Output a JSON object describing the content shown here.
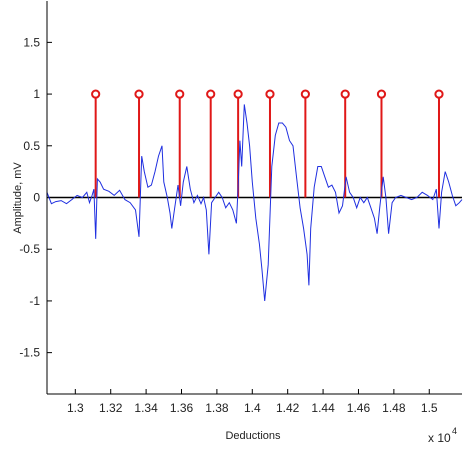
{
  "chart_data": {
    "type": "line",
    "title": "",
    "xlabel": "Deductions",
    "ylabel": "Amplitude, mV",
    "x_multiplier_label": "x 10",
    "x_multiplier_exponent": "4",
    "xlim": [
      1.284,
      1.5185
    ],
    "ylim": [
      -1.9,
      1.9
    ],
    "x_ticks": [
      1.3,
      1.32,
      1.34,
      1.36,
      1.38,
      1.4,
      1.42,
      1.44,
      1.46,
      1.48,
      1.5
    ],
    "x_tick_labels": [
      "1.3",
      "1.32",
      "1.34",
      "1.36",
      "1.38",
      "1.4",
      "1.42",
      "1.44",
      "1.46",
      "1.48",
      "1.5"
    ],
    "y_ticks": [
      -1.5,
      -1,
      -0.5,
      0,
      0.5,
      1,
      1.5
    ],
    "y_tick_labels": [
      "-1.5",
      "-1",
      "-0.5",
      "0",
      "0.5",
      "1",
      "1.5"
    ],
    "grid": false,
    "colors": {
      "signal": "#1f2fe0",
      "markers": "#e01818",
      "baseline": "#000000"
    },
    "series": [
      {
        "kind": "line",
        "values": [
          [
            1.284,
            0.05
          ],
          [
            1.2865,
            -0.06
          ],
          [
            1.289,
            -0.04
          ],
          [
            1.292,
            -0.03
          ],
          [
            1.295,
            -0.06
          ],
          [
            1.298,
            -0.02
          ],
          [
            1.301,
            0.02
          ],
          [
            1.304,
            0.0
          ],
          [
            1.3065,
            0.05
          ],
          [
            1.308,
            -0.05
          ],
          [
            1.3095,
            0.02
          ],
          [
            1.3105,
            0.08
          ],
          [
            1.3115,
            -0.4
          ],
          [
            1.3125,
            0.18
          ],
          [
            1.314,
            0.15
          ],
          [
            1.316,
            0.08
          ],
          [
            1.319,
            0.06
          ],
          [
            1.322,
            0.02
          ],
          [
            1.325,
            0.07
          ],
          [
            1.328,
            -0.02
          ],
          [
            1.331,
            -0.05
          ],
          [
            1.334,
            -0.12
          ],
          [
            1.336,
            -0.38
          ],
          [
            1.3375,
            0.4
          ],
          [
            1.339,
            0.25
          ],
          [
            1.341,
            0.1
          ],
          [
            1.343,
            0.12
          ],
          [
            1.345,
            0.25
          ],
          [
            1.347,
            0.4
          ],
          [
            1.349,
            0.5
          ],
          [
            1.35,
            0.15
          ],
          [
            1.352,
            0.0
          ],
          [
            1.3535,
            -0.15
          ],
          [
            1.3545,
            -0.3
          ],
          [
            1.356,
            -0.12
          ],
          [
            1.358,
            0.12
          ],
          [
            1.3595,
            -0.08
          ],
          [
            1.361,
            0.15
          ],
          [
            1.363,
            0.3
          ],
          [
            1.365,
            0.08
          ],
          [
            1.367,
            -0.05
          ],
          [
            1.369,
            0.02
          ],
          [
            1.371,
            -0.06
          ],
          [
            1.3725,
            0.0
          ],
          [
            1.374,
            -0.12
          ],
          [
            1.3755,
            -0.55
          ],
          [
            1.377,
            -0.05
          ],
          [
            1.379,
            0.0
          ],
          [
            1.381,
            0.05
          ],
          [
            1.383,
            0.0
          ],
          [
            1.385,
            -0.1
          ],
          [
            1.387,
            -0.05
          ],
          [
            1.389,
            -0.12
          ],
          [
            1.391,
            -0.25
          ],
          [
            1.392,
            0.1
          ],
          [
            1.393,
            0.55
          ],
          [
            1.394,
            0.3
          ],
          [
            1.3955,
            0.9
          ],
          [
            1.397,
            0.72
          ],
          [
            1.3985,
            0.5
          ],
          [
            1.4,
            0.15
          ],
          [
            1.402,
            -0.2
          ],
          [
            1.404,
            -0.45
          ],
          [
            1.4055,
            -0.7
          ],
          [
            1.407,
            -1.0
          ],
          [
            1.409,
            -0.65
          ],
          [
            1.411,
            0.3
          ],
          [
            1.413,
            0.6
          ],
          [
            1.415,
            0.72
          ],
          [
            1.417,
            0.72
          ],
          [
            1.419,
            0.68
          ],
          [
            1.421,
            0.55
          ],
          [
            1.423,
            0.5
          ],
          [
            1.425,
            0.2
          ],
          [
            1.427,
            -0.1
          ],
          [
            1.429,
            -0.3
          ],
          [
            1.431,
            -0.55
          ],
          [
            1.432,
            -0.85
          ],
          [
            1.433,
            -0.3
          ],
          [
            1.435,
            0.1
          ],
          [
            1.437,
            0.3
          ],
          [
            1.439,
            0.3
          ],
          [
            1.441,
            0.2
          ],
          [
            1.443,
            0.1
          ],
          [
            1.445,
            0.12
          ],
          [
            1.447,
            0.05
          ],
          [
            1.449,
            -0.15
          ],
          [
            1.451,
            -0.08
          ],
          [
            1.453,
            0.2
          ],
          [
            1.455,
            0.05
          ],
          [
            1.457,
            0.0
          ],
          [
            1.459,
            -0.1
          ],
          [
            1.461,
            0.0
          ],
          [
            1.463,
            -0.05
          ],
          [
            1.465,
            0.0
          ],
          [
            1.467,
            -0.1
          ],
          [
            1.469,
            -0.2
          ],
          [
            1.4705,
            -0.35
          ],
          [
            1.472,
            -0.1
          ],
          [
            1.474,
            0.2
          ],
          [
            1.4755,
            0.0
          ],
          [
            1.477,
            -0.35
          ],
          [
            1.479,
            -0.05
          ],
          [
            1.481,
            0.0
          ],
          [
            1.484,
            0.02
          ],
          [
            1.487,
            0.0
          ],
          [
            1.49,
            -0.02
          ],
          [
            1.493,
            0.0
          ],
          [
            1.496,
            0.05
          ],
          [
            1.499,
            0.02
          ],
          [
            1.502,
            -0.02
          ],
          [
            1.504,
            0.08
          ],
          [
            1.5055,
            -0.3
          ],
          [
            1.507,
            0.05
          ],
          [
            1.509,
            0.25
          ],
          [
            1.511,
            0.15
          ],
          [
            1.513,
            0.02
          ],
          [
            1.515,
            -0.08
          ],
          [
            1.517,
            -0.05
          ],
          [
            1.5185,
            -0.02
          ]
        ]
      },
      {
        "kind": "stem",
        "x": [
          1.3115,
          1.336,
          1.359,
          1.3765,
          1.392,
          1.41,
          1.43,
          1.4525,
          1.473,
          1.5055
        ],
        "values": [
          1.0,
          1.0,
          1.0,
          1.0,
          1.0,
          1.0,
          1.0,
          1.0,
          1.0,
          1.0
        ]
      }
    ]
  }
}
